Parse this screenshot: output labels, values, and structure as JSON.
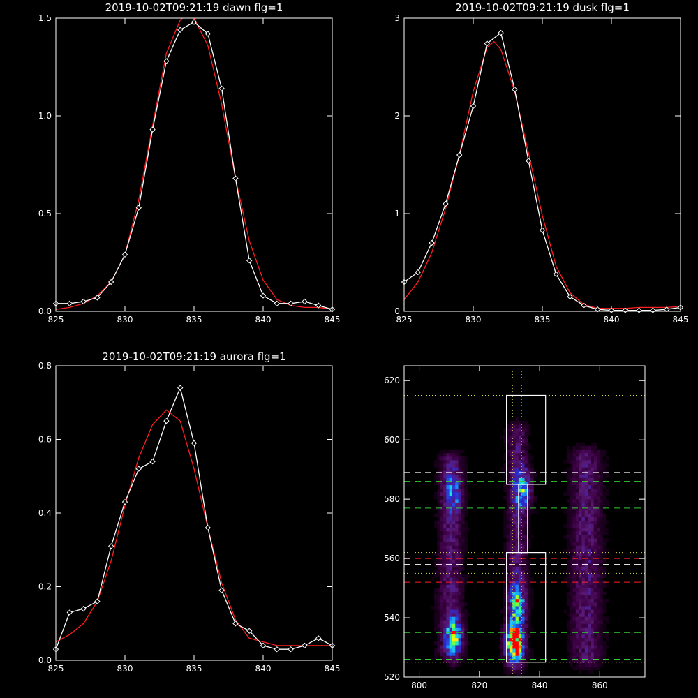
{
  "chart_data": [
    {
      "type": "line",
      "title": "2019-10-02T09:21:19 dawn flg=1",
      "xlim": [
        825,
        845
      ],
      "ylim": [
        0,
        1.5
      ],
      "xticks": [
        825,
        830,
        835,
        840,
        845
      ],
      "xtick_labels": [
        "825",
        "830",
        "835",
        "840",
        "845"
      ],
      "yticks": [
        0,
        0.5,
        1.0,
        1.5
      ],
      "ytick_labels": [
        "0.0",
        "0.5",
        "1.0",
        "1.5"
      ],
      "series": [
        {
          "role": "observed",
          "color": "#ffffff",
          "marker": "diamond",
          "x": [
            825,
            826,
            827,
            828,
            829,
            830,
            831,
            832,
            833,
            834,
            835,
            836,
            837,
            838,
            839,
            840,
            841,
            842,
            843,
            844,
            845
          ],
          "y": [
            0.04,
            0.04,
            0.05,
            0.07,
            0.15,
            0.29,
            0.53,
            0.93,
            1.28,
            1.44,
            1.48,
            1.42,
            1.14,
            0.68,
            0.26,
            0.08,
            0.04,
            0.04,
            0.05,
            0.03,
            0.01
          ]
        },
        {
          "role": "fit",
          "color": "#ff1f1f",
          "x": [
            825,
            826,
            827,
            828,
            829,
            830,
            831,
            832,
            833,
            834,
            834.5,
            835,
            836,
            837,
            838,
            839,
            840,
            841,
            842,
            843,
            844,
            845
          ],
          "y": [
            0.01,
            0.02,
            0.04,
            0.08,
            0.15,
            0.29,
            0.57,
            0.95,
            1.32,
            1.49,
            1.52,
            1.5,
            1.36,
            1.06,
            0.68,
            0.36,
            0.16,
            0.06,
            0.03,
            0.02,
            0.02,
            0.01
          ]
        }
      ]
    },
    {
      "type": "line",
      "title": "2019-10-02T09:21:19 dusk flg=1",
      "xlim": [
        825,
        845
      ],
      "ylim": [
        0,
        3
      ],
      "xticks": [
        825,
        830,
        835,
        840,
        845
      ],
      "xtick_labels": [
        "825",
        "830",
        "835",
        "840",
        "845"
      ],
      "yticks": [
        0,
        1,
        2,
        3
      ],
      "ytick_labels": [
        "0",
        "1",
        "2",
        "3"
      ],
      "series": [
        {
          "role": "observed",
          "color": "#ffffff",
          "marker": "diamond",
          "x": [
            825,
            826,
            827,
            828,
            829,
            830,
            831,
            832,
            833,
            834,
            835,
            836,
            837,
            838,
            839,
            840,
            841,
            842,
            843,
            844,
            845
          ],
          "y": [
            0.3,
            0.4,
            0.7,
            1.1,
            1.6,
            2.1,
            2.74,
            2.85,
            2.27,
            1.54,
            0.83,
            0.38,
            0.15,
            0.06,
            0.02,
            0.01,
            0.01,
            0.01,
            0.01,
            0.02,
            0.04
          ]
        },
        {
          "role": "fit",
          "color": "#ff1f1f",
          "x": [
            825,
            826,
            827,
            828,
            829,
            830,
            831,
            831.5,
            832,
            833,
            834,
            835,
            836,
            837,
            838,
            839,
            840,
            841,
            842,
            843,
            844,
            845
          ],
          "y": [
            0.12,
            0.3,
            0.6,
            1.05,
            1.6,
            2.25,
            2.7,
            2.76,
            2.68,
            2.25,
            1.62,
            0.98,
            0.46,
            0.19,
            0.07,
            0.03,
            0.03,
            0.03,
            0.04,
            0.04,
            0.04,
            0.05
          ]
        }
      ]
    },
    {
      "type": "line",
      "title": "2019-10-02T09:21:19 aurora flg=1",
      "xlim": [
        825,
        845
      ],
      "ylim": [
        0,
        0.8
      ],
      "xticks": [
        825,
        830,
        835,
        840,
        845
      ],
      "xtick_labels": [
        "825",
        "830",
        "835",
        "840",
        "845"
      ],
      "yticks": [
        0,
        0.2,
        0.4,
        0.6,
        0.8
      ],
      "ytick_labels": [
        "0.0",
        "0.2",
        "0.4",
        "0.6",
        "0.8"
      ],
      "series": [
        {
          "role": "observed",
          "color": "#ffffff",
          "marker": "diamond",
          "x": [
            825,
            826,
            827,
            828,
            829,
            830,
            831,
            832,
            833,
            834,
            835,
            836,
            837,
            838,
            839,
            840,
            841,
            842,
            843,
            844,
            845
          ],
          "y": [
            0.03,
            0.13,
            0.14,
            0.16,
            0.31,
            0.43,
            0.52,
            0.54,
            0.65,
            0.74,
            0.59,
            0.36,
            0.19,
            0.1,
            0.08,
            0.04,
            0.03,
            0.03,
            0.04,
            0.06,
            0.04
          ]
        },
        {
          "role": "fit",
          "color": "#ff1f1f",
          "x": [
            825,
            826,
            827,
            828,
            829,
            830,
            831,
            832,
            833,
            834,
            835,
            836,
            837,
            838,
            839,
            840,
            841,
            842,
            843,
            844,
            845
          ],
          "y": [
            0.05,
            0.07,
            0.1,
            0.16,
            0.27,
            0.42,
            0.55,
            0.64,
            0.68,
            0.65,
            0.52,
            0.36,
            0.21,
            0.11,
            0.06,
            0.05,
            0.04,
            0.04,
            0.04,
            0.04,
            0.04
          ]
        }
      ]
    },
    {
      "type": "heatmap",
      "xlim": [
        795,
        875
      ],
      "ylim": [
        520,
        625
      ],
      "xticks": [
        800,
        820,
        840,
        860
      ],
      "xtick_labels": [
        "800",
        "820",
        "840",
        "860"
      ],
      "yticks": [
        520,
        540,
        560,
        580,
        600,
        620
      ],
      "ytick_labels": [
        "520",
        "540",
        "560",
        "580",
        "600",
        "620"
      ],
      "colormap": [
        "#000000",
        "#3a0040",
        "#5a1a78",
        "#2a2ad0",
        "#1a8cff",
        "#20e0e0",
        "#30ff60",
        "#ffff00",
        "#ff0000"
      ],
      "bands": [
        {
          "x": 810,
          "y_min": 528,
          "y_max": 592,
          "sigma": 3.5
        },
        {
          "x": 832,
          "y_min": 526,
          "y_max": 602,
          "sigma": 3.0
        },
        {
          "x": 855,
          "y_min": 526,
          "y_max": 594,
          "sigma": 4.5
        }
      ],
      "peaks": [
        {
          "x": 811,
          "y": 533,
          "amp": 0.55
        },
        {
          "x": 831,
          "y": 531,
          "amp": 1.0
        },
        {
          "x": 832,
          "y": 544,
          "amp": 0.5
        },
        {
          "x": 834,
          "y": 583,
          "amp": 0.5
        },
        {
          "x": 811,
          "y": 582,
          "amp": 0.32
        }
      ],
      "boxes": [
        {
          "x0": 829,
          "x1": 842,
          "y0": 525,
          "y1": 562
        },
        {
          "x0": 829,
          "x1": 842,
          "y0": 585,
          "y1": 615
        },
        {
          "x0": 833,
          "x1": 836,
          "y0": 562,
          "y1": 585
        }
      ],
      "hlines": [
        {
          "y": 615,
          "color": "#d8d84a",
          "style": "dotted"
        },
        {
          "y": 589,
          "color": "#ffffff",
          "style": "dashed"
        },
        {
          "y": 586,
          "color": "#33cc33",
          "style": "dashed"
        },
        {
          "y": 577,
          "color": "#33cc33",
          "style": "dashed"
        },
        {
          "y": 562,
          "color": "#d8d84a",
          "style": "dotted"
        },
        {
          "y": 560,
          "color": "#ff1f1f",
          "style": "dashed"
        },
        {
          "y": 558,
          "color": "#ffffff",
          "style": "dashed"
        },
        {
          "y": 555,
          "color": "#d8d84a",
          "style": "dotted"
        },
        {
          "y": 552,
          "color": "#ff1f1f",
          "style": "dashed"
        },
        {
          "y": 535,
          "color": "#33cc33",
          "style": "dashed"
        },
        {
          "y": 526,
          "color": "#33cc33",
          "style": "dashed"
        },
        {
          "y": 525,
          "color": "#d8d84a",
          "style": "dotted"
        }
      ],
      "vlines": [
        {
          "x": 831,
          "color": "#d8d84a",
          "style": "dotted"
        },
        {
          "x": 834,
          "color": "#d8d84a",
          "style": "dotted"
        }
      ]
    }
  ]
}
